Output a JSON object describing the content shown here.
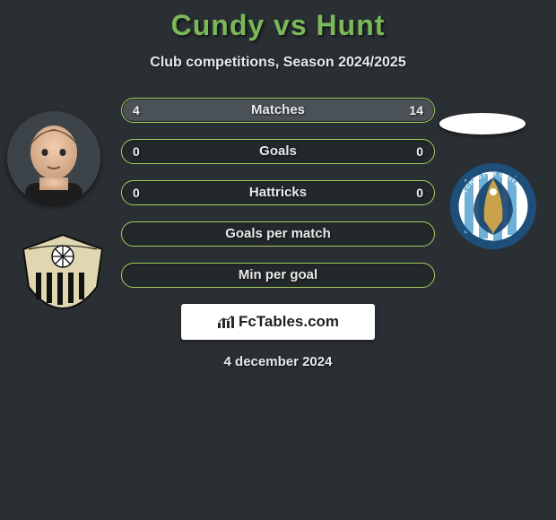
{
  "title": {
    "text": "Cundy vs Hunt",
    "color": "#7ab85a",
    "fontsize": 32
  },
  "subtitle": "Club competitions, Season 2024/2025",
  "accent_color": "#a5cf5d",
  "background_color": "#2a2f33",
  "bar_bg_color": "rgba(0,0,0,0.15)",
  "bar_fill_color": "#4a5258",
  "bars": [
    {
      "label": "Matches",
      "left": "4",
      "right": "14",
      "left_pct": 22,
      "right_pct": 78
    },
    {
      "label": "Goals",
      "left": "0",
      "right": "0",
      "left_pct": 0,
      "right_pct": 0
    },
    {
      "label": "Hattricks",
      "left": "0",
      "right": "0",
      "left_pct": 0,
      "right_pct": 0
    },
    {
      "label": "Goals per match",
      "left": "",
      "right": "",
      "left_pct": 0,
      "right_pct": 0
    },
    {
      "label": "Min per goal",
      "left": "",
      "right": "",
      "left_pct": 0,
      "right_pct": 0
    }
  ],
  "footer_brand": "FcTables.com",
  "date": "4 december 2024",
  "left_player": {
    "name": "Cundy",
    "club": "Notts County"
  },
  "right_player": {
    "name": "Hunt",
    "club": "Colchester United FC"
  },
  "club_right_colors": {
    "stripe1": "#6fb1d6",
    "stripe2": "#ffffff",
    "ring": "#1d4f7a",
    "gold": "#c9a24a"
  },
  "club_left_colors": {
    "shield": "#e0d6b0",
    "stripes": "#111111",
    "ball": "#ffffff"
  }
}
